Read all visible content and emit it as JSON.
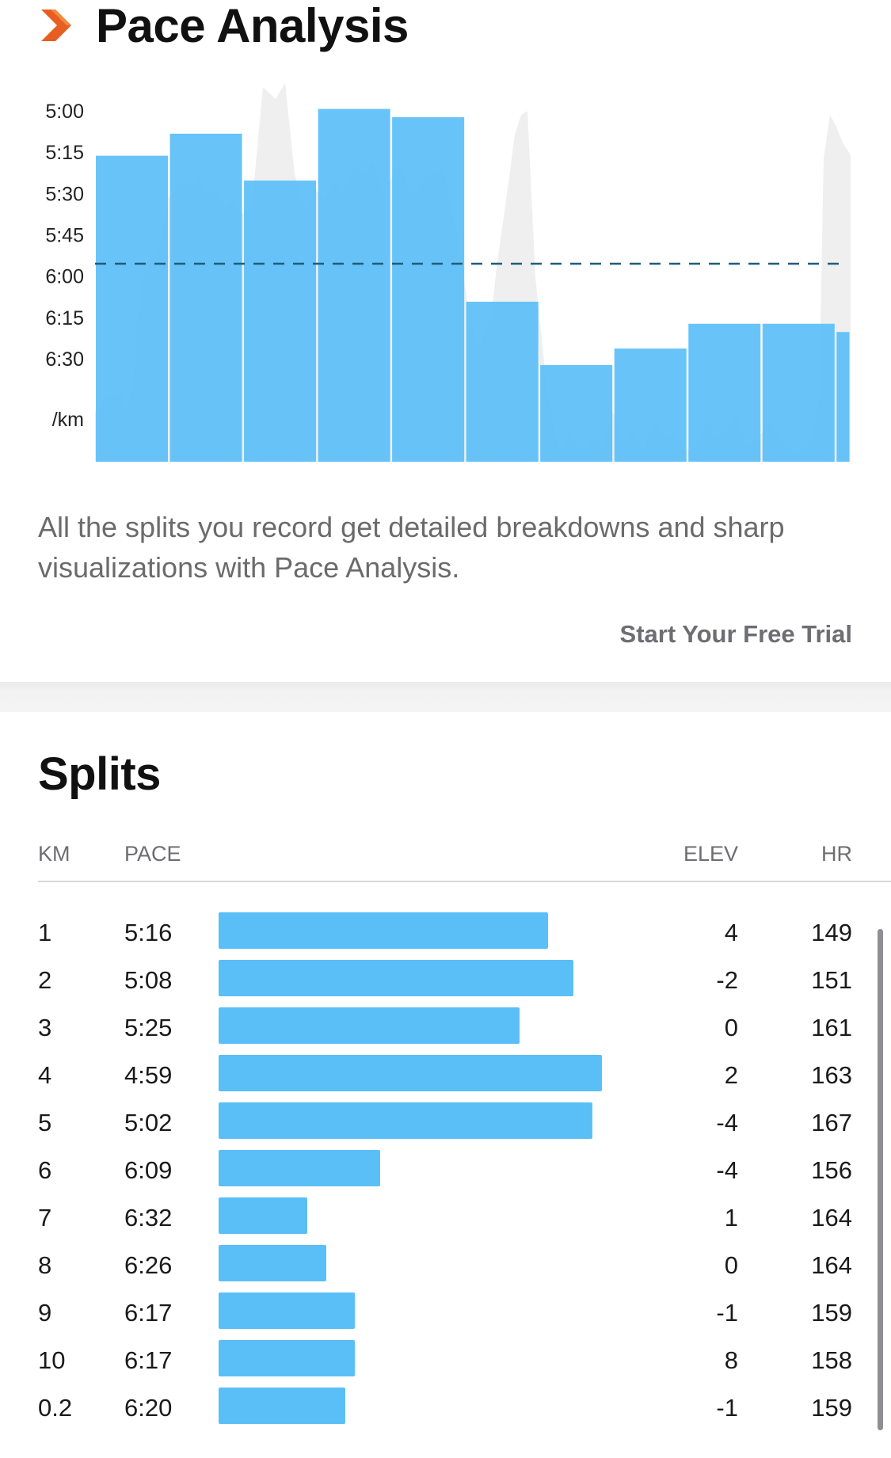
{
  "pace_analysis": {
    "title": "Pace Analysis",
    "icon": "chevron-right-icon",
    "description": "All the splits you record get detailed breakdowns and sharp visualizations with Pace Analysis.",
    "cta_label": "Start Your Free Trial"
  },
  "chart_data": {
    "type": "bar",
    "y_axis_ticks": [
      "5:00",
      "5:15",
      "5:30",
      "5:45",
      "6:00",
      "6:15",
      "6:30"
    ],
    "y_unit": "/km",
    "y_axis_min_seconds": 286,
    "y_axis_max_seconds": 398,
    "average_pace": "5:45",
    "average_pace_seconds": 345,
    "categories": [
      "1",
      "2",
      "3",
      "4",
      "5",
      "6",
      "7",
      "8",
      "9",
      "10",
      "0.2"
    ],
    "split_distance_km": [
      1,
      1,
      1,
      1,
      1,
      1,
      1,
      1,
      1,
      1,
      0.2
    ],
    "pace_seconds": [
      316,
      308,
      325,
      299,
      302,
      369,
      392,
      386,
      377,
      377,
      380
    ],
    "colors": {
      "bars": "#5bbff7",
      "average_line": "#1f5d7a",
      "elevation_area": "#efeff0"
    }
  },
  "splits": {
    "title": "Splits",
    "columns": {
      "km": "KM",
      "pace": "PACE",
      "elev": "ELEV",
      "hr": "HR"
    },
    "rows": [
      {
        "km": "1",
        "pace": "5:16",
        "elev": "4",
        "hr": "149",
        "pace_seconds": 316
      },
      {
        "km": "2",
        "pace": "5:08",
        "elev": "-2",
        "hr": "151",
        "pace_seconds": 308
      },
      {
        "km": "3",
        "pace": "5:25",
        "elev": "0",
        "hr": "161",
        "pace_seconds": 325
      },
      {
        "km": "4",
        "pace": "4:59",
        "elev": "2",
        "hr": "163",
        "pace_seconds": 299
      },
      {
        "km": "5",
        "pace": "5:02",
        "elev": "-4",
        "hr": "167",
        "pace_seconds": 302
      },
      {
        "km": "6",
        "pace": "6:09",
        "elev": "-4",
        "hr": "156",
        "pace_seconds": 369
      },
      {
        "km": "7",
        "pace": "6:32",
        "elev": "1",
        "hr": "164",
        "pace_seconds": 392
      },
      {
        "km": "8",
        "pace": "6:26",
        "elev": "0",
        "hr": "164",
        "pace_seconds": 386
      },
      {
        "km": "9",
        "pace": "6:17",
        "elev": "-1",
        "hr": "159",
        "pace_seconds": 377
      },
      {
        "km": "10",
        "pace": "6:17",
        "elev": "8",
        "hr": "158",
        "pace_seconds": 377
      },
      {
        "km": "0.2",
        "pace": "6:20",
        "elev": "-1",
        "hr": "159",
        "pace_seconds": 380
      }
    ]
  }
}
